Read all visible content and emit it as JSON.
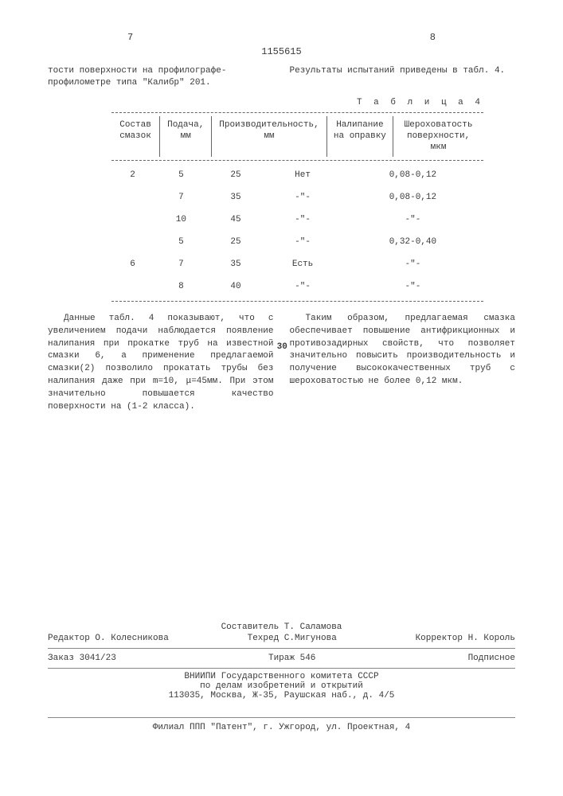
{
  "page_left_num": "7",
  "page_right_num": "8",
  "doc_id": "1155615",
  "intro_left": "тости поверхности на профилографе-профилометре типа \"Калибр\" 201.",
  "intro_right": "Результаты испытаний приведены в табл. 4.",
  "table_label": "Т а б л и ц а  4",
  "table": {
    "headers": [
      "Состав смазок",
      "Подача, мм",
      "Производительность, мм",
      "Налипание на оправку",
      "Шероховатость поверхности, мкм"
    ],
    "rows": [
      [
        "2",
        "5",
        "25",
        "Нет",
        "0,08-0,12"
      ],
      [
        "",
        "7",
        "35",
        "-\"-",
        "0,08-0,12"
      ],
      [
        "",
        "10",
        "45",
        "-\"-",
        "-\"-"
      ],
      [
        "",
        "5",
        "25",
        "-\"-",
        "0,32-0,40"
      ],
      [
        "6",
        "7",
        "35",
        "Есть",
        "-\"-"
      ],
      [
        "",
        "8",
        "40",
        "-\"-",
        "-\"-"
      ]
    ]
  },
  "line_marker": "30",
  "body_left": "Данные табл. 4 показывают, что с увеличением подачи наблюдается появление налипания при прокатке труб на известной смазки 6, а применение предлагаемой смазки(2) позволило прокатать трубы без налипания даже при m=10, μ=45мм. При этом значительно повышается качество поверхности на (1-2 класса).",
  "body_right": "Таким образом, предлагаемая смазка обеспечивает повышение антифрикционных и противозадирных свойств, что позволяет значительно повысить производительность и получение высококачественных труб с шероховатостью не более 0,12 мкм.",
  "footer": {
    "composer": "Составитель Т. Саламова",
    "editor": "Редактор О. Колесникова",
    "techred": "Техред С.Мигунова",
    "corrector": "Корректор Н. Король",
    "order": "Заказ 3041/23",
    "tirazh": "Тираж 546",
    "podpis": "Подписное",
    "org1": "ВНИИПИ Государственного комитета СССР",
    "org2": "по делам изобретений и открытий",
    "address": "113035, Москва, Ж-35, Раушская наб., д. 4/5",
    "filial": "Филиал ППП \"Патент\", г. Ужгород, ул. Проектная, 4"
  }
}
